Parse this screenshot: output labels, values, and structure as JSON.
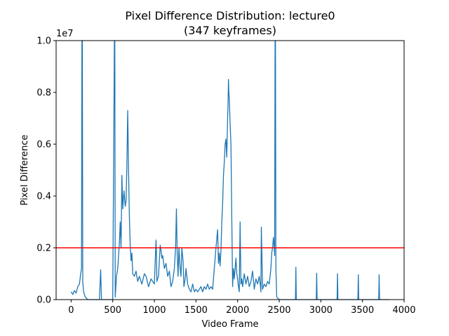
{
  "colors": {
    "series": "#1f77b4",
    "threshold": "#ff0000",
    "axis": "#000000",
    "background": "#ffffff"
  },
  "chart_data": {
    "type": "line",
    "title_line1": "Pixel Difference Distribution: lecture0",
    "title_line2": "(347 keyframes)",
    "xlabel": "Video Frame",
    "ylabel": "Pixel Difference",
    "y_offset_label": "1e7",
    "xlim": [
      -180,
      4000
    ],
    "ylim": [
      0,
      1.0
    ],
    "y_unit_multiplier": 10000000,
    "grid": false,
    "x_ticks": [
      0,
      500,
      1000,
      1500,
      2000,
      2500,
      3000,
      3500,
      4000
    ],
    "x_tick_labels": [
      "0",
      "500",
      "1000",
      "1500",
      "2000",
      "2500",
      "3000",
      "3500",
      "4000"
    ],
    "y_ticks": [
      0.0,
      0.2,
      0.4,
      0.6,
      0.8,
      1.0
    ],
    "y_tick_labels": [
      "0.0",
      "0.2",
      "0.4",
      "0.6",
      "0.8",
      "1.0"
    ],
    "threshold": 0.2,
    "series": [
      {
        "x": [
          0,
          20,
          40,
          60,
          80,
          100,
          115,
          125,
          130,
          135,
          140,
          150,
          170,
          200,
          250,
          300,
          340,
          355,
          365,
          390,
          400,
          410,
          450,
          500,
          520,
          525,
          530,
          545,
          560,
          580,
          590,
          600,
          610,
          620,
          635,
          650,
          660,
          670,
          680,
          690,
          700,
          710,
          720,
          730,
          740,
          760,
          780,
          800,
          820,
          850,
          880,
          900,
          930,
          960,
          1000,
          1020,
          1025,
          1030,
          1050,
          1070,
          1080,
          1090,
          1100,
          1120,
          1140,
          1160,
          1180,
          1200,
          1220,
          1240,
          1255,
          1265,
          1275,
          1285,
          1295,
          1310,
          1320,
          1330,
          1345,
          1355,
          1370,
          1380,
          1400,
          1420,
          1440,
          1460,
          1480,
          1500,
          1520,
          1540,
          1560,
          1580,
          1600,
          1620,
          1640,
          1660,
          1680,
          1700,
          1720,
          1740,
          1760,
          1770,
          1780,
          1790,
          1800,
          1810,
          1820,
          1830,
          1840,
          1850,
          1860,
          1870,
          1880,
          1885,
          1890,
          1895,
          1900,
          1905,
          1910,
          1920,
          1930,
          1940,
          1950,
          1960,
          1970,
          1980,
          1990,
          2000,
          2010,
          2020,
          2030,
          2040,
          2050,
          2060,
          2080,
          2100,
          2120,
          2140,
          2160,
          2180,
          2200,
          2220,
          2240,
          2260,
          2275,
          2280,
          2285,
          2300,
          2320,
          2340,
          2360,
          2380,
          2400,
          2410,
          2420,
          2430,
          2440,
          2445,
          2450,
          2455,
          2460,
          2470,
          2500,
          2600,
          2695,
          2700,
          2705,
          2800,
          2900,
          2945,
          2950,
          2955,
          3100,
          3195,
          3200,
          3205,
          3350,
          3445,
          3450,
          3455,
          3600,
          3695,
          3700,
          3705,
          3820
        ],
        "y": [
          0.03,
          0.02,
          0.035,
          0.025,
          0.05,
          0.06,
          0.1,
          0.12,
          1.0,
          1.0,
          0.07,
          0.03,
          0.01,
          0.0,
          0.0,
          0.0,
          0.0,
          0.115,
          0.0,
          0.0,
          0.0,
          0.0,
          0.0,
          0.0,
          1.0,
          1.0,
          0.01,
          0.09,
          0.12,
          0.22,
          0.3,
          0.2,
          0.48,
          0.35,
          0.42,
          0.36,
          0.38,
          0.52,
          0.73,
          0.5,
          0.32,
          0.21,
          0.15,
          0.18,
          0.1,
          0.09,
          0.11,
          0.07,
          0.09,
          0.06,
          0.1,
          0.09,
          0.05,
          0.08,
          0.06,
          0.23,
          0.18,
          0.07,
          0.09,
          0.21,
          0.19,
          0.16,
          0.17,
          0.12,
          0.14,
          0.09,
          0.11,
          0.05,
          0.07,
          0.12,
          0.2,
          0.35,
          0.17,
          0.09,
          0.2,
          0.12,
          0.09,
          0.2,
          0.15,
          0.05,
          0.08,
          0.12,
          0.06,
          0.04,
          0.03,
          0.06,
          0.03,
          0.04,
          0.03,
          0.04,
          0.05,
          0.03,
          0.05,
          0.04,
          0.06,
          0.04,
          0.05,
          0.04,
          0.12,
          0.2,
          0.27,
          0.14,
          0.18,
          0.13,
          0.19,
          0.3,
          0.37,
          0.48,
          0.53,
          0.6,
          0.62,
          0.55,
          0.7,
          0.75,
          0.85,
          0.8,
          0.78,
          0.73,
          0.68,
          0.6,
          0.32,
          0.05,
          0.12,
          0.08,
          0.12,
          0.16,
          0.1,
          0.08,
          0.05,
          0.03,
          0.3,
          0.06,
          0.08,
          0.05,
          0.1,
          0.06,
          0.09,
          0.05,
          0.07,
          0.11,
          0.04,
          0.08,
          0.06,
          0.09,
          0.05,
          0.03,
          0.28,
          0.04,
          0.06,
          0.05,
          0.07,
          0.06,
          0.12,
          0.18,
          0.2,
          0.24,
          0.2,
          0.17,
          1.0,
          1.0,
          0.12,
          0.01,
          0.0,
          0.0,
          0.0,
          0.125,
          0.0,
          0.0,
          0.0,
          0.0,
          0.102,
          0.0,
          0.0,
          0.0,
          0.1,
          0.0,
          0.0,
          0.0,
          0.096,
          0.0,
          0.0,
          0.0,
          0.096,
          0.0,
          0.0
        ]
      }
    ]
  }
}
